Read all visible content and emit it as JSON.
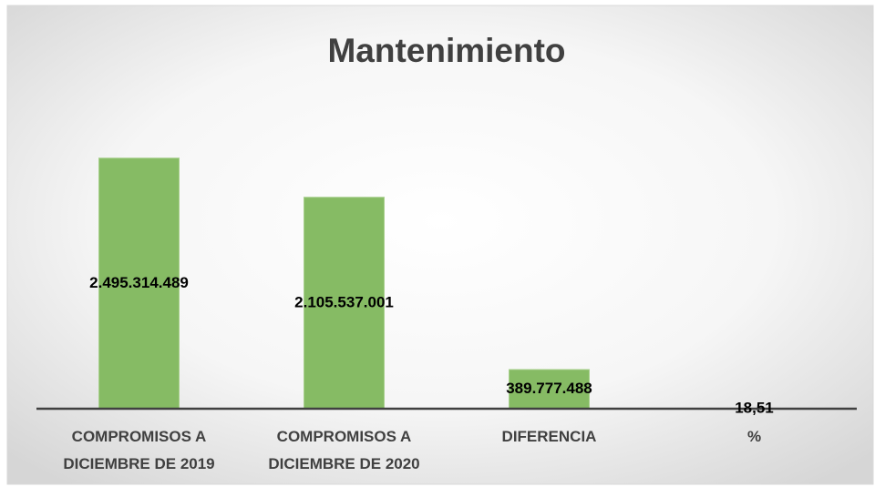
{
  "chart_data": {
    "type": "bar",
    "title": "Mantenimiento",
    "categories": [
      "COMPROMISOS A DICIEMBRE  DE  2019",
      "COMPROMISOS A DICIEMBRE  DE 2020",
      "DIFERENCIA",
      "%"
    ],
    "values": [
      2495314489,
      2105537001,
      389777488,
      18.51
    ],
    "value_labels": [
      "2.495.314.489",
      "2.105.537.001",
      "389.777.488",
      "18,51"
    ],
    "color": "#86bb64",
    "ylim": [
      0,
      3000000000
    ]
  }
}
